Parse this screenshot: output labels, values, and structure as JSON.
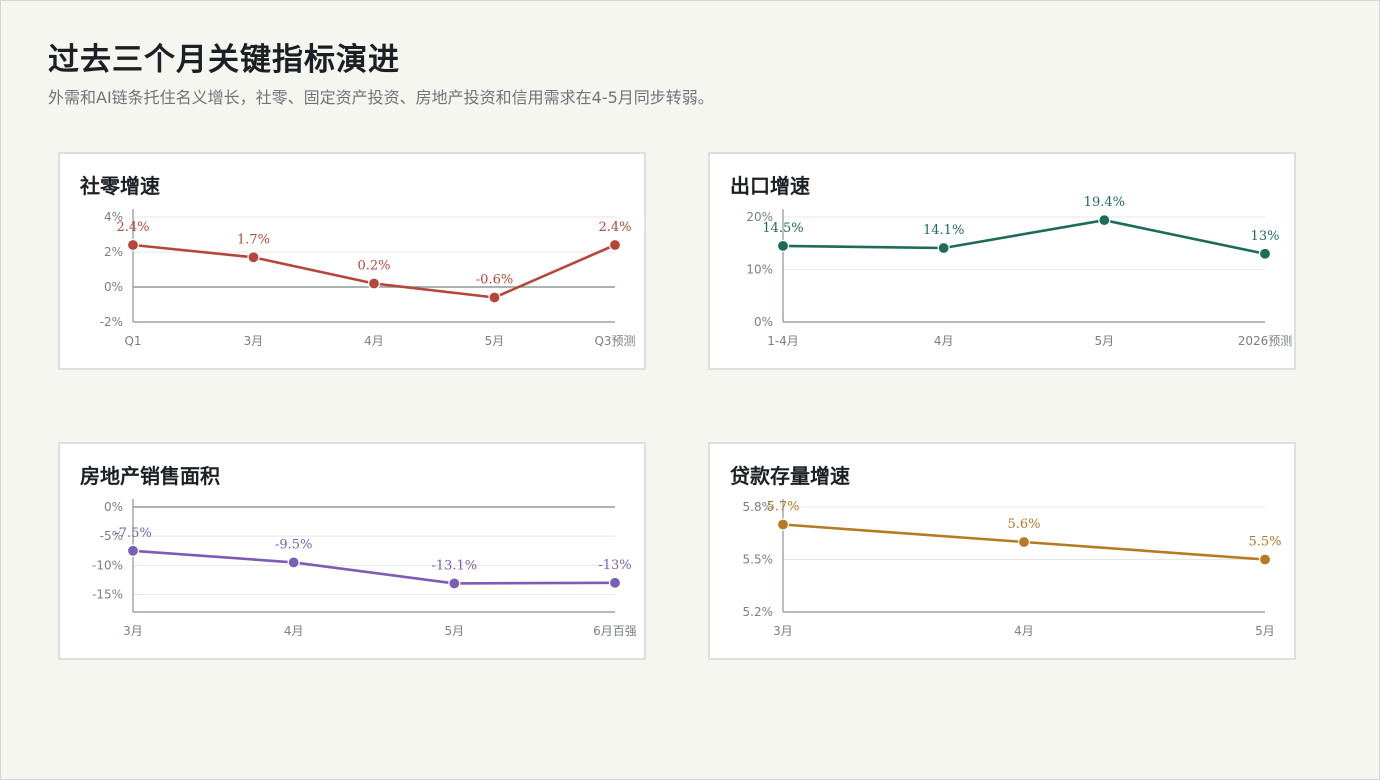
{
  "page": {
    "title": "过去三个月关键指标演进",
    "subtitle": "外需和AI链条托住名义增长，社零、固定资产投资、房地产投资和信用需求在4-5月同步转弱。"
  },
  "chart_data": [
    {
      "type": "line",
      "title": "社零增速",
      "color": "#b5473a",
      "categories": [
        "Q1",
        "3月",
        "4月",
        "5月",
        "Q3预测"
      ],
      "values": [
        2.4,
        1.7,
        0.2,
        -0.6,
        2.4
      ],
      "value_labels": [
        "2.4%",
        "1.7%",
        "0.2%",
        "-0.6%",
        "2.4%"
      ],
      "yticks": [
        4,
        2,
        0,
        -2
      ],
      "ytick_labels": [
        "4%",
        "2%",
        "0%",
        "-2%"
      ],
      "ylim": [
        -2,
        4
      ],
      "zero_line": true
    },
    {
      "type": "line",
      "title": "出口增速",
      "color": "#1f6b5a",
      "categories": [
        "1-4月",
        "4月",
        "5月",
        "2026预测"
      ],
      "values": [
        14.5,
        14.1,
        19.4,
        13
      ],
      "value_labels": [
        "14.5%",
        "14.1%",
        "19.4%",
        "13%"
      ],
      "yticks": [
        20,
        10,
        0
      ],
      "ytick_labels": [
        "20%",
        "10%",
        "0%"
      ],
      "ylim": [
        0,
        20
      ],
      "zero_line": false
    },
    {
      "type": "line",
      "title": "房地产销售面积",
      "color": "#7b5cb6",
      "categories": [
        "3月",
        "4月",
        "5月",
        "6月百强"
      ],
      "values": [
        -7.5,
        -9.5,
        -13.1,
        -13
      ],
      "value_labels": [
        "-7.5%",
        "-9.5%",
        "-13.1%",
        "-13%"
      ],
      "yticks": [
        0,
        -5,
        -10,
        -15
      ],
      "ytick_labels": [
        "0%",
        "-5%",
        "-10%",
        "-15%"
      ],
      "ylim": [
        -18,
        0
      ],
      "zero_line": true
    },
    {
      "type": "line",
      "title": "贷款存量增速",
      "color": "#b57a22",
      "categories": [
        "3月",
        "4月",
        "5月"
      ],
      "values": [
        5.7,
        5.6,
        5.5
      ],
      "value_labels": [
        "5.7%",
        "5.6%",
        "5.5%"
      ],
      "yticks": [
        5.8,
        5.5,
        5.2
      ],
      "ytick_labels": [
        "5.8%",
        "5.5%",
        "5.2%"
      ],
      "ylim": [
        5.2,
        5.8
      ],
      "zero_line": false
    }
  ]
}
